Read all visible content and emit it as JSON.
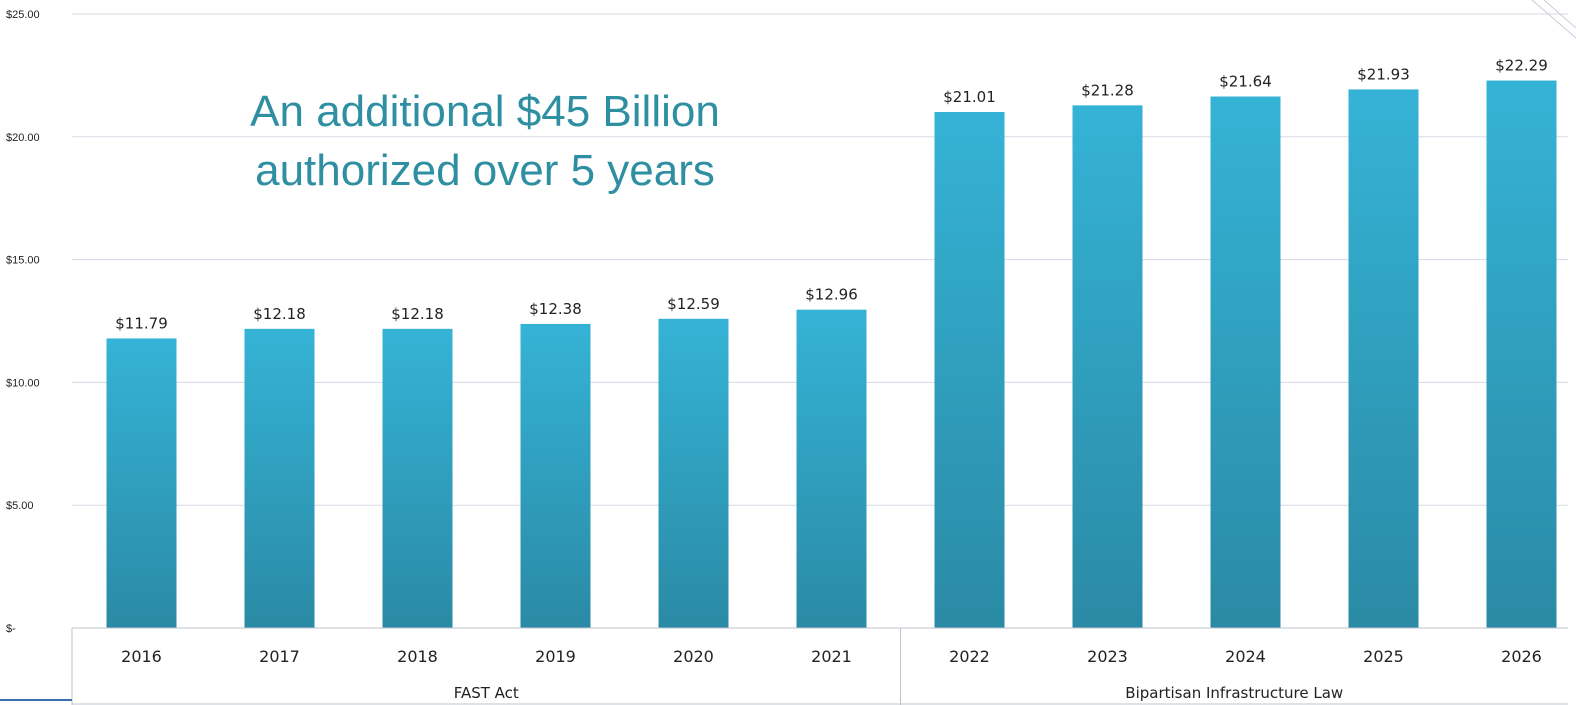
{
  "chart_data": {
    "type": "bar",
    "title": "",
    "xlabel": "",
    "ylabel": "",
    "categories": [
      "2016",
      "2017",
      "2018",
      "2019",
      "2020",
      "2021",
      "2022",
      "2023",
      "2024",
      "2025",
      "2026"
    ],
    "values": [
      11.79,
      12.18,
      12.18,
      12.38,
      12.59,
      12.96,
      21.01,
      21.28,
      21.64,
      21.93,
      22.29
    ],
    "data_labels": [
      "$11.79",
      "$12.18",
      "$12.18",
      "$12.38",
      "$12.59",
      "$12.96",
      "$21.01",
      "$21.28",
      "$21.64",
      "$21.93",
      "$22.29"
    ],
    "ylim": [
      0,
      25
    ],
    "y_ticks": [
      {
        "value": 0,
        "label": "$-"
      },
      {
        "value": 5,
        "label": "$5.00"
      },
      {
        "value": 10,
        "label": "$10.00"
      },
      {
        "value": 15,
        "label": "$15.00"
      },
      {
        "value": 20,
        "label": "$20.00"
      },
      {
        "value": 25,
        "label": "$25.00"
      }
    ],
    "groups": [
      {
        "label": "FAST Act",
        "categories": [
          "2016",
          "2017",
          "2018",
          "2019",
          "2020",
          "2021"
        ]
      },
      {
        "label": "Bipartisan Infrastructure Law",
        "categories": [
          "2022",
          "2023",
          "2024",
          "2025",
          "2026"
        ]
      }
    ],
    "annotation": [
      "An additional $45 Billion",
      "authorized over 5 years"
    ],
    "grid": true,
    "legend": "none"
  },
  "colors": {
    "bar_top": "#35b3d6",
    "bar_bottom": "#2a8aa5",
    "grid": "#d6d9e6",
    "annotation": "#2f8fa2"
  }
}
